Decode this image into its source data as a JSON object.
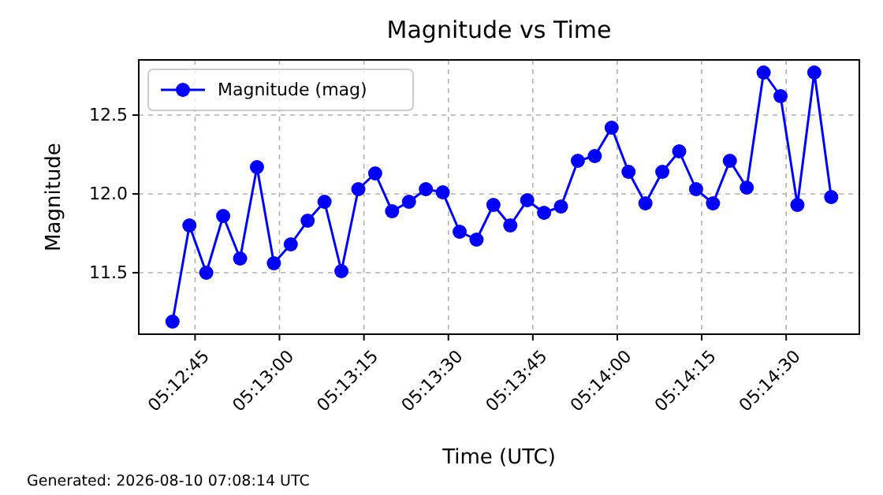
{
  "chart_data": {
    "type": "line",
    "title": "Magnitude vs Time",
    "xlabel": "Time (UTC)",
    "ylabel": "Magnitude",
    "x": [
      "2026-08-10T05:12:41",
      "2026-08-10T05:12:44",
      "2026-08-10T05:12:47",
      "2026-08-10T05:12:50",
      "2026-08-10T05:12:53",
      "2026-08-10T05:12:56",
      "2026-08-10T05:12:59",
      "2026-08-10T05:13:02",
      "2026-08-10T05:13:05",
      "2026-08-10T05:13:08",
      "2026-08-10T05:13:11",
      "2026-08-10T05:13:14",
      "2026-08-10T05:13:17",
      "2026-08-10T05:13:20",
      "2026-08-10T05:13:23",
      "2026-08-10T05:13:26",
      "2026-08-10T05:13:29",
      "2026-08-10T05:13:32",
      "2026-08-10T05:13:35",
      "2026-08-10T05:13:38",
      "2026-08-10T05:13:41",
      "2026-08-10T05:13:44",
      "2026-08-10T05:13:47",
      "2026-08-10T05:13:50",
      "2026-08-10T05:13:53",
      "2026-08-10T05:13:56",
      "2026-08-10T05:13:59",
      "2026-08-10T05:14:02",
      "2026-08-10T05:14:05",
      "2026-08-10T05:14:08",
      "2026-08-10T05:14:11",
      "2026-08-10T05:14:14",
      "2026-08-10T05:14:17",
      "2026-08-10T05:14:20",
      "2026-08-10T05:14:23",
      "2026-08-10T05:14:26",
      "2026-08-10T05:14:29",
      "2026-08-10T05:14:32",
      "2026-08-10T05:14:35",
      "2026-08-10T05:14:38"
    ],
    "series": [
      {
        "name": "Magnitude (mag)",
        "color": "#0000ff",
        "values": [
          11.19,
          11.8,
          11.5,
          11.86,
          11.59,
          12.17,
          11.56,
          11.68,
          11.83,
          11.95,
          11.51,
          12.03,
          12.13,
          11.89,
          11.95,
          12.03,
          12.01,
          11.76,
          11.71,
          11.93,
          11.8,
          11.96,
          11.88,
          11.92,
          12.21,
          12.24,
          12.42,
          12.14,
          11.94,
          12.14,
          12.27,
          12.03,
          11.94,
          12.21,
          12.04,
          12.77,
          12.62,
          11.93,
          12.77,
          11.98
        ]
      }
    ],
    "xlim": [
      "2026-08-10T05:12:35",
      "2026-08-10T05:14:43"
    ],
    "xticks": [
      {
        "value": "2026-08-10T05:12:45",
        "label": "05:12:45"
      },
      {
        "value": "2026-08-10T05:13:00",
        "label": "05:13:00"
      },
      {
        "value": "2026-08-10T05:13:15",
        "label": "05:13:15"
      },
      {
        "value": "2026-08-10T05:13:30",
        "label": "05:13:30"
      },
      {
        "value": "2026-08-10T05:13:45",
        "label": "05:13:45"
      },
      {
        "value": "2026-08-10T05:14:00",
        "label": "05:14:00"
      },
      {
        "value": "2026-08-10T05:14:15",
        "label": "05:14:15"
      },
      {
        "value": "2026-08-10T05:14:30",
        "label": "05:14:30"
      }
    ],
    "ylim": [
      11.11,
      12.85
    ],
    "yticks": [
      {
        "value": 11.5,
        "label": "11.5"
      },
      {
        "value": 12.0,
        "label": "12.0"
      },
      {
        "value": 12.5,
        "label": "12.5"
      }
    ],
    "grid": true,
    "legend": "top left",
    "marker": "circle",
    "line_style": "solid",
    "annotations": [
      "Generated: 2026-08-10 07:08:14 UTC"
    ]
  }
}
